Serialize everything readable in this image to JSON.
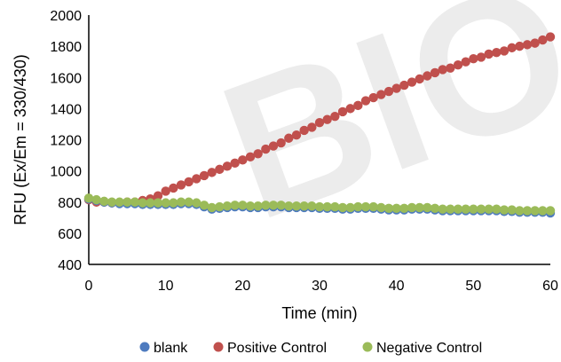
{
  "chart_data": {
    "type": "scatter",
    "title": "",
    "xlabel": "Time (min)",
    "ylabel": "RFU (Ex/Em = 330/430)",
    "xlim": [
      0,
      60
    ],
    "ylim": [
      400,
      2000
    ],
    "xticks": [
      0,
      10,
      20,
      30,
      40,
      50,
      60
    ],
    "yticks": [
      400,
      600,
      800,
      1000,
      1200,
      1400,
      1600,
      1800,
      2000
    ],
    "grid": false,
    "legend_position": "bottom",
    "watermark": "BIO",
    "x": [
      0,
      1,
      2,
      3,
      4,
      5,
      6,
      7,
      8,
      9,
      10,
      11,
      12,
      13,
      14,
      15,
      16,
      17,
      18,
      19,
      20,
      21,
      22,
      23,
      24,
      25,
      26,
      27,
      28,
      29,
      30,
      31,
      32,
      33,
      34,
      35,
      36,
      37,
      38,
      39,
      40,
      41,
      42,
      43,
      44,
      45,
      46,
      47,
      48,
      49,
      50,
      51,
      52,
      53,
      54,
      55,
      56,
      57,
      58,
      59,
      60
    ],
    "series": [
      {
        "name": "blank",
        "color": "#4e7bbf",
        "values": [
          820,
          810,
          800,
          795,
          790,
          790,
          790,
          785,
          785,
          785,
          785,
          785,
          790,
          790,
          785,
          770,
          755,
          760,
          765,
          770,
          770,
          765,
          765,
          770,
          770,
          770,
          765,
          765,
          765,
          765,
          760,
          760,
          760,
          755,
          755,
          760,
          760,
          760,
          755,
          750,
          750,
          750,
          755,
          755,
          755,
          750,
          745,
          745,
          745,
          745,
          745,
          745,
          745,
          745,
          740,
          740,
          735,
          735,
          735,
          735,
          730
        ]
      },
      {
        "name": "Positive Control",
        "color": "#c0504d",
        "values": [
          815,
          800,
          800,
          795,
          795,
          800,
          800,
          810,
          820,
          840,
          870,
          890,
          910,
          930,
          950,
          970,
          990,
          1010,
          1030,
          1050,
          1070,
          1090,
          1110,
          1140,
          1160,
          1180,
          1210,
          1230,
          1260,
          1280,
          1310,
          1330,
          1350,
          1380,
          1400,
          1420,
          1450,
          1470,
          1490,
          1510,
          1530,
          1550,
          1570,
          1590,
          1610,
          1630,
          1650,
          1660,
          1680,
          1700,
          1720,
          1730,
          1750,
          1760,
          1770,
          1790,
          1800,
          1810,
          1820,
          1840,
          1860
        ]
      },
      {
        "name": "Negative Control",
        "color": "#9bbb59",
        "values": [
          825,
          815,
          805,
          800,
          800,
          800,
          800,
          795,
          795,
          795,
          795,
          795,
          800,
          800,
          795,
          780,
          765,
          770,
          775,
          780,
          780,
          775,
          775,
          780,
          780,
          780,
          775,
          775,
          775,
          775,
          770,
          770,
          770,
          765,
          765,
          770,
          770,
          770,
          765,
          760,
          760,
          760,
          765,
          765,
          765,
          760,
          755,
          755,
          755,
          755,
          755,
          755,
          755,
          755,
          750,
          750,
          745,
          745,
          745,
          745,
          745
        ]
      }
    ]
  }
}
